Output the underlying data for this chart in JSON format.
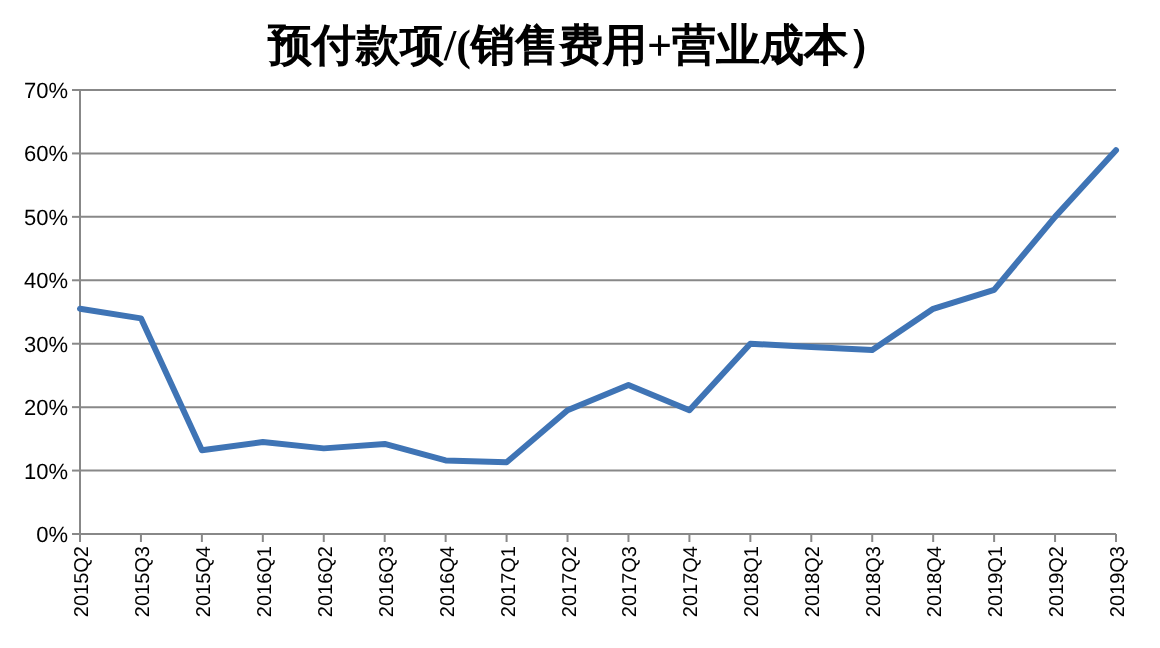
{
  "chart_data": {
    "type": "line",
    "title": "预付款项/(销售费用+营业成本）",
    "categories": [
      "2015Q2",
      "2015Q3",
      "2015Q4",
      "2016Q1",
      "2016Q2",
      "2016Q3",
      "2016Q4",
      "2017Q1",
      "2017Q2",
      "2017Q3",
      "2017Q4",
      "2018Q1",
      "2018Q2",
      "2018Q3",
      "2018Q4",
      "2019Q1",
      "2019Q2",
      "2019Q3"
    ],
    "series": [
      {
        "color": "#3f74b5",
        "values": [
          35.5,
          34,
          13.2,
          14.5,
          13.5,
          14.2,
          11.6,
          11.3,
          19.5,
          23.5,
          19.5,
          30,
          29.5,
          29,
          35.5,
          38.5,
          50,
          60.5
        ]
      }
    ],
    "ylim": [
      0,
      70
    ],
    "yticks": [
      {
        "value": 0,
        "label": "0%"
      },
      {
        "value": 10,
        "label": "10%"
      },
      {
        "value": 20,
        "label": "20%"
      },
      {
        "value": 30,
        "label": "30%"
      },
      {
        "value": 40,
        "label": "40%"
      },
      {
        "value": 50,
        "label": "50%"
      },
      {
        "value": 60,
        "label": "60%"
      },
      {
        "value": 70,
        "label": "70%"
      }
    ],
    "grid": "y",
    "marker": "none",
    "line_style": "solid"
  }
}
